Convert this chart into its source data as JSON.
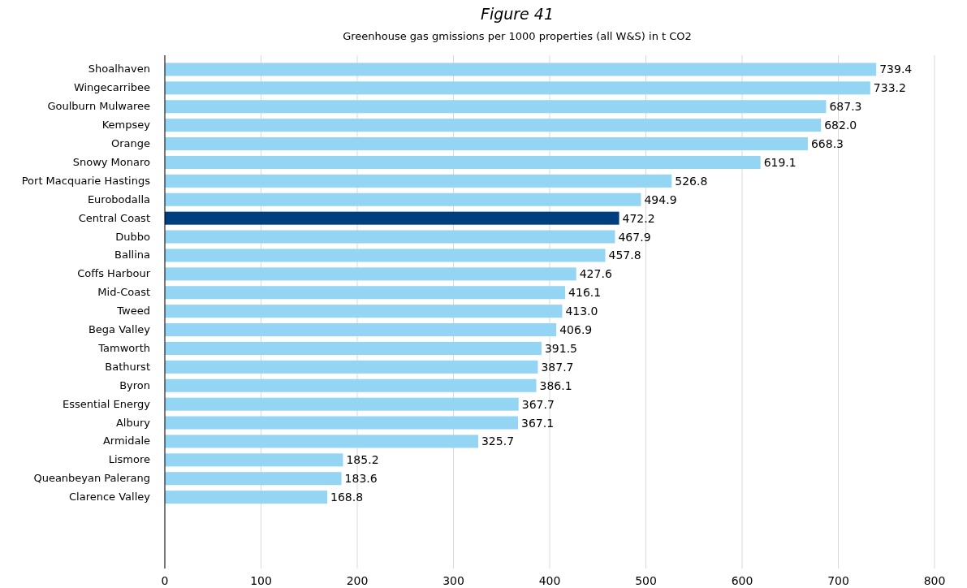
{
  "chart_data": {
    "type": "bar",
    "orientation": "horizontal",
    "title": "Figure 41",
    "subtitle": "Greenhouse gas gmissions per 1000 properties (all W&S) in t CO2",
    "categories": [
      "Shoalhaven",
      "Wingecarribee",
      "Goulburn Mulwaree",
      "Kempsey",
      "Orange",
      "Snowy Monaro",
      "Port Macquarie Hastings",
      "Eurobodalla",
      "Central Coast",
      "Dubbo",
      "Ballina",
      "Coffs Harbour",
      "Mid-Coast",
      "Tweed",
      "Bega Valley",
      "Tamworth",
      "Bathurst",
      "Byron",
      "Essential Energy",
      "Albury",
      "Armidale",
      "Lismore",
      "Queanbeyan Palerang",
      "Clarence Valley"
    ],
    "values": [
      739.4,
      733.2,
      687.3,
      682.0,
      668.3,
      619.1,
      526.8,
      494.9,
      472.2,
      467.9,
      457.8,
      427.6,
      416.1,
      413.0,
      406.9,
      391.5,
      387.7,
      386.1,
      367.7,
      367.1,
      325.7,
      185.2,
      183.6,
      168.8
    ],
    "value_labels": [
      "739.4",
      "733.2",
      "687.3",
      "682.0",
      "668.3",
      "619.1",
      "526.8",
      "494.9",
      "472.2",
      "467.9",
      "457.8",
      "427.6",
      "416.1",
      "413.0",
      "406.9",
      "391.5",
      "387.7",
      "386.1",
      "367.7",
      "367.1",
      "325.7",
      "185.2",
      "183.6",
      "168.8"
    ],
    "colors": [
      "#93d5f3",
      "#93d5f3",
      "#93d5f3",
      "#93d5f3",
      "#93d5f3",
      "#93d5f3",
      "#93d5f3",
      "#93d5f3",
      "#003f7d",
      "#93d5f3",
      "#93d5f3",
      "#93d5f3",
      "#93d5f3",
      "#93d5f3",
      "#93d5f3",
      "#93d5f3",
      "#93d5f3",
      "#93d5f3",
      "#93d5f3",
      "#93d5f3",
      "#93d5f3",
      "#93d5f3",
      "#93d5f3",
      "#93d5f3"
    ],
    "xlim": [
      0,
      800
    ],
    "xticks": [
      0,
      100,
      200,
      300,
      400,
      500,
      600,
      700,
      800
    ],
    "grid": "x"
  }
}
